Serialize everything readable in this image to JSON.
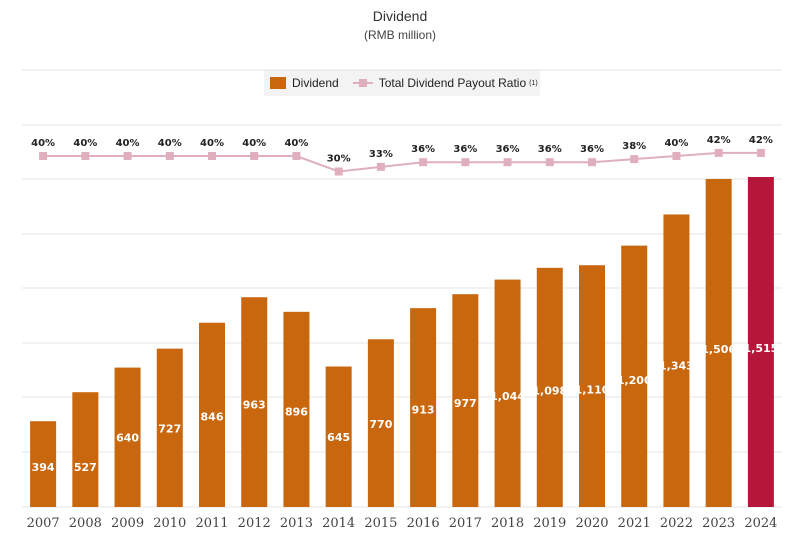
{
  "title": "Dividend",
  "subtitle": "(RMB million)",
  "legend": {
    "bar_label": "Dividend",
    "line_label": "Total Dividend Payout Ratio",
    "line_note": "(1)"
  },
  "colors": {
    "bar": "#C8670E",
    "highlight_bar": "#B5173A",
    "line": "#DFAFBE",
    "grid": "#e6e6e6"
  },
  "chart_data": {
    "type": "bar",
    "categories": [
      "2007",
      "2008",
      "2009",
      "2010",
      "2011",
      "2012",
      "2013",
      "2014",
      "2015",
      "2016",
      "2017",
      "2018",
      "2019",
      "2020",
      "2021",
      "2022",
      "2023",
      "2024"
    ],
    "series": [
      {
        "name": "Dividend",
        "type": "bar",
        "values": [
          394,
          527,
          640,
          727,
          846,
          963,
          896,
          645,
          770,
          913,
          977,
          1044,
          1098,
          1110,
          1200,
          1343,
          1506,
          1515
        ],
        "labels": [
          "394",
          "527",
          "640",
          "727",
          "846",
          "963",
          "896",
          "645",
          "770",
          "913",
          "977",
          "1,044",
          "1,098",
          "1,110",
          "1,200",
          "1,343",
          "1,506",
          "1,515"
        ],
        "highlight_index": 17
      },
      {
        "name": "Total Dividend Payout Ratio",
        "type": "line",
        "values": [
          40,
          40,
          40,
          40,
          40,
          40,
          40,
          30,
          33,
          36,
          36,
          36,
          36,
          36,
          38,
          40,
          42,
          42
        ],
        "labels": [
          "40%",
          "40%",
          "40%",
          "40%",
          "40%",
          "40%",
          "40%",
          "30%",
          "33%",
          "36%",
          "36%",
          "36%",
          "36%",
          "36%",
          "38%",
          "40%",
          "42%",
          "42%"
        ]
      }
    ],
    "grid": true,
    "legend_position": "top-center"
  }
}
